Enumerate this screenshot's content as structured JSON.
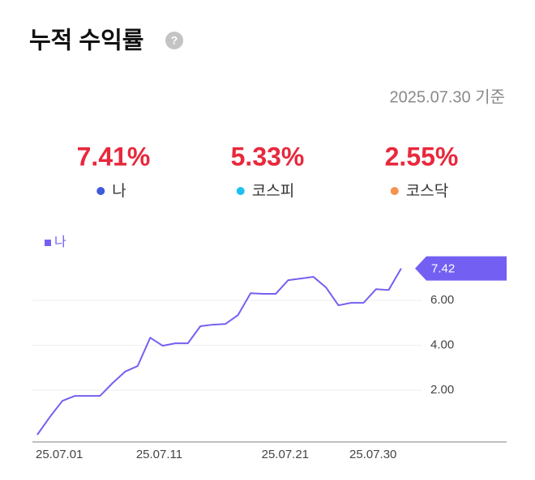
{
  "header": {
    "title": "누적 수익률",
    "help": "?",
    "date": "2025.07.30 기준"
  },
  "stats": [
    {
      "value": "7.41%",
      "label": "나",
      "color": "#3f5bdc"
    },
    {
      "value": "5.33%",
      "label": "코스피",
      "color": "#1ec0f0"
    },
    {
      "value": "2.55%",
      "label": "코스닥",
      "color": "#f5934d"
    }
  ],
  "chart_data": {
    "type": "line",
    "categories": [
      "25.07.01",
      null,
      null,
      null,
      null,
      null,
      null,
      null,
      "25.07.11",
      null,
      null,
      null,
      null,
      null,
      null,
      null,
      null,
      null,
      "25.07.21",
      null,
      null,
      null,
      null,
      null,
      null,
      "25.07.30",
      null,
      null,
      null,
      null
    ],
    "series": [
      {
        "name": "나",
        "color": "#7360f2",
        "values": [
          0.02,
          0.81,
          1.53,
          1.75,
          1.75,
          1.75,
          2.32,
          2.83,
          3.08,
          4.34,
          3.98,
          4.09,
          4.09,
          4.85,
          4.92,
          4.95,
          5.35,
          6.32,
          6.29,
          6.29,
          6.9,
          6.97,
          7.05,
          6.58,
          5.78,
          5.89,
          5.89,
          6.5,
          6.46,
          7.42
        ]
      }
    ],
    "ylim": [
      -0.3,
      8.2
    ],
    "yticks": [
      {
        "value": 2,
        "label": "2.00"
      },
      {
        "value": 4,
        "label": "4.00"
      },
      {
        "value": 6,
        "label": "6.00"
      }
    ],
    "grid": true,
    "legend": "top-left"
  }
}
